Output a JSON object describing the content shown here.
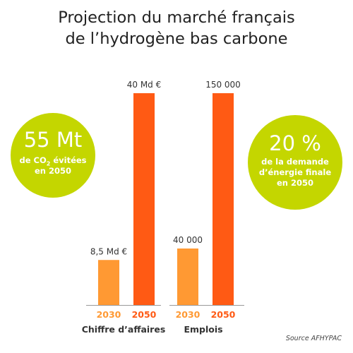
{
  "title": {
    "line1": "Projection du marché français",
    "line2": "de l’hydrogène bas carbone"
  },
  "circles": {
    "left": {
      "value": "55 Mt",
      "line1_pre": "de CO",
      "line1_sub": "2",
      "line1_post": " évitées",
      "line2": "en 2050"
    },
    "right": {
      "value": "20 %",
      "line1": "de la demande",
      "line2": "d’énergie finale",
      "line3": "en 2050"
    }
  },
  "source": "Source AFHYPAC",
  "colors": {
    "circle": "#c4d600",
    "bar_2030": "#ff9933",
    "bar_2050": "#ff5a14",
    "axis": "#999999"
  },
  "chart_data": [
    {
      "type": "bar",
      "xlabel": "Chiffre d’affaires",
      "categories": [
        "2030",
        "2050"
      ],
      "values": [
        8.5,
        40
      ],
      "value_labels": [
        "8,5 Md €",
        "40 Md €"
      ],
      "ylim": [
        0,
        40
      ]
    },
    {
      "type": "bar",
      "xlabel": "Emplois",
      "categories": [
        "2030",
        "2050"
      ],
      "values": [
        40000,
        150000
      ],
      "value_labels": [
        "40 000",
        "150 000"
      ],
      "ylim": [
        0,
        150000
      ]
    }
  ]
}
